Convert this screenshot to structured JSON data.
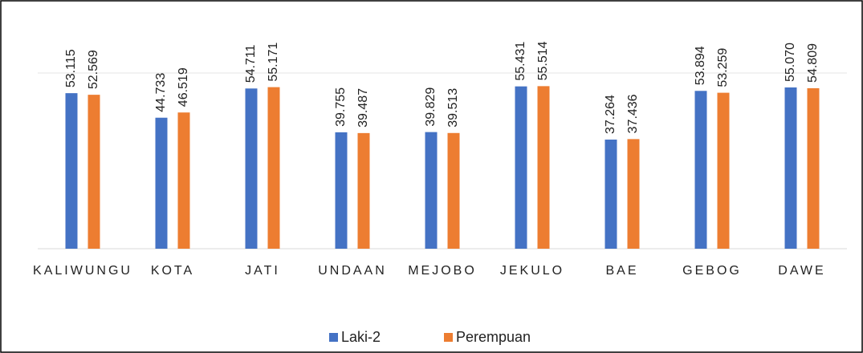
{
  "chart_data": {
    "type": "bar",
    "categories": [
      "KALIWUNGU",
      "KOTA",
      "JATI",
      "UNDAAN",
      "MEJOBO",
      "JEKULO",
      "BAE",
      "GEBOG",
      "DAWE"
    ],
    "series": [
      {
        "name": "Laki-2",
        "color": "#4472c4",
        "values": [
          53.115,
          44.733,
          54.711,
          39.755,
          39.829,
          55.431,
          37.264,
          53.894,
          55.07
        ]
      },
      {
        "name": "Perempuan",
        "color": "#ed7d31",
        "values": [
          52.569,
          46.519,
          55.171,
          39.487,
          39.513,
          55.514,
          37.436,
          53.259,
          54.809
        ]
      }
    ],
    "value_labels": [
      [
        "53.115",
        "44.733",
        "54.711",
        "39.755",
        "39.829",
        "55.431",
        "37.264",
        "53.894",
        "55.070"
      ],
      [
        "52.569",
        "46.519",
        "55.171",
        "39.487",
        "39.513",
        "55.514",
        "37.436",
        "53.259",
        "54.809"
      ]
    ],
    "ylim": [
      0,
      60
    ],
    "legend": "bottom"
  }
}
